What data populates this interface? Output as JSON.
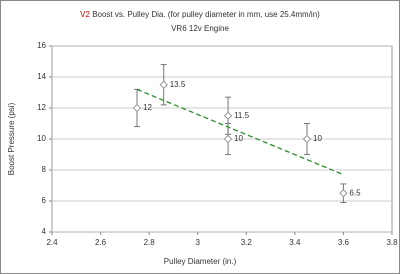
{
  "chart_data": {
    "type": "scatter",
    "title_prefix": "V2",
    "title_prefix_color": "#cc0000",
    "title": "Boost vs. Pulley Dia. (for pulley diameter in mm, use 25.4mm/in)",
    "subtitle": "VR6 12v Engine",
    "x_label": "Pulley Diameter (in.)",
    "y_label": "Boost Pressure (psi)",
    "x": [
      2.75,
      2.86,
      3.125,
      3.125,
      3.45,
      3.6
    ],
    "values": [
      12,
      13.5,
      11.5,
      10,
      10,
      6.5
    ],
    "errors": [
      1.2,
      1.3,
      1.2,
      1,
      1,
      0.6
    ],
    "color": "#999999",
    "trendline": {
      "x": [
        2.75,
        3.6
      ],
      "y": [
        13.2,
        7.7
      ],
      "color": "#2e8b2e"
    },
    "xlim": [
      2.4,
      3.8
    ],
    "xticks": [
      2.4,
      2.6,
      2.8,
      3,
      3.2,
      3.4,
      3.6,
      3.8
    ],
    "ylim": [
      4,
      16
    ],
    "yticks": [
      4,
      6,
      8,
      10,
      12,
      14,
      16
    ],
    "grid": true
  }
}
